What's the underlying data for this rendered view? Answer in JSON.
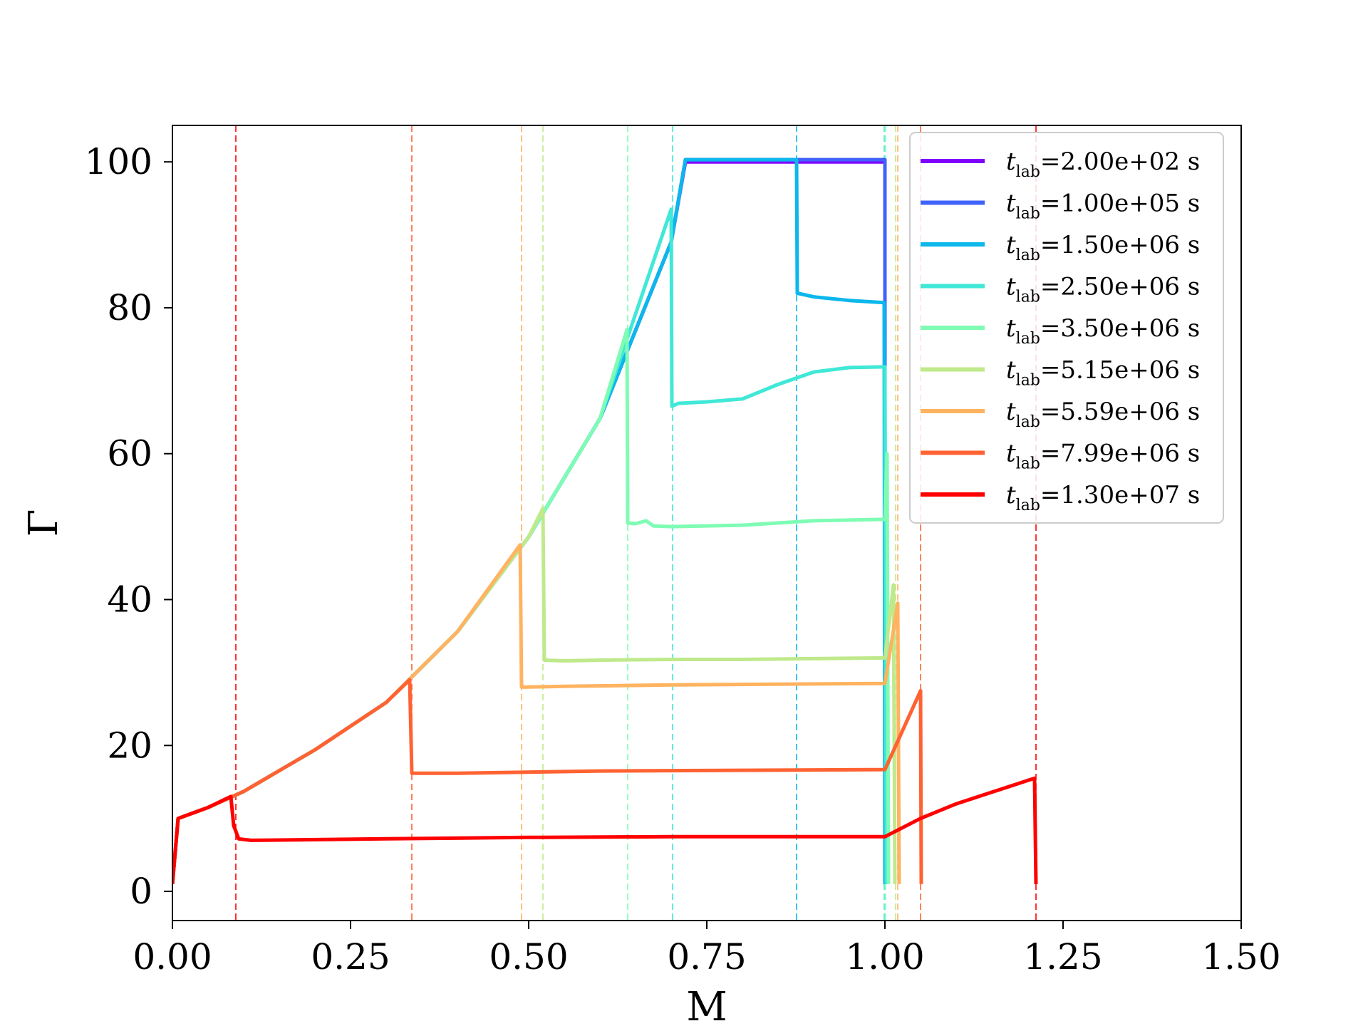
{
  "chart_data": {
    "type": "line",
    "xlabel": "M",
    "ylabel": "Γ",
    "xlim": [
      0,
      1.5
    ],
    "ylim": [
      -4,
      105
    ],
    "xticks": [
      0,
      0.25,
      0.5,
      0.75,
      1.0,
      1.25,
      1.5
    ],
    "xtick_labels": [
      "0.00",
      "0.25",
      "0.50",
      "0.75",
      "1.00",
      "1.25",
      "1.50"
    ],
    "yticks": [
      0,
      20,
      40,
      60,
      80,
      100
    ],
    "ytick_labels": [
      "0",
      "20",
      "40",
      "60",
      "80",
      "100"
    ],
    "grid": false,
    "legend_position": "top-right",
    "series": [
      {
        "name_prefix": "t",
        "name_sub": "lab",
        "name_value": "=2.00e+02 s",
        "color": "#7f00ff",
        "points": [
          [
            0.0,
            1
          ],
          [
            0.008,
            10
          ],
          [
            0.05,
            11.5
          ],
          [
            0.1,
            13.7
          ],
          [
            0.2,
            19.4
          ],
          [
            0.3,
            25.9
          ],
          [
            0.4,
            35.6
          ],
          [
            0.5,
            48.6
          ],
          [
            0.6,
            64.8
          ],
          [
            0.7,
            89
          ],
          [
            0.72,
            100
          ],
          [
            1.0,
            100
          ],
          [
            1.0,
            1
          ]
        ],
        "markers": []
      },
      {
        "name_prefix": "t",
        "name_sub": "lab",
        "name_value": "=1.00e+05 s",
        "color": "#4062fa",
        "points": [
          [
            0.0,
            1
          ],
          [
            0.008,
            10
          ],
          [
            0.05,
            11.5
          ],
          [
            0.1,
            13.7
          ],
          [
            0.2,
            19.4
          ],
          [
            0.3,
            25.9
          ],
          [
            0.4,
            35.6
          ],
          [
            0.5,
            48.6
          ],
          [
            0.6,
            64.8
          ],
          [
            0.7,
            89
          ],
          [
            0.72,
            100.3
          ],
          [
            1.0,
            100.3
          ],
          [
            1.0,
            1
          ]
        ],
        "markers": []
      },
      {
        "name_prefix": "t",
        "name_sub": "lab",
        "name_value": "=1.50e+06 s",
        "color": "#0bb7eb",
        "points": [
          [
            0.0,
            1
          ],
          [
            0.008,
            10
          ],
          [
            0.05,
            11.5
          ],
          [
            0.1,
            13.7
          ],
          [
            0.2,
            19.4
          ],
          [
            0.3,
            25.9
          ],
          [
            0.4,
            35.6
          ],
          [
            0.5,
            48.6
          ],
          [
            0.6,
            64.8
          ],
          [
            0.7,
            89
          ],
          [
            0.72,
            100.3
          ],
          [
            0.876,
            100.3
          ],
          [
            0.877,
            82
          ],
          [
            0.9,
            81.5
          ],
          [
            0.95,
            81
          ],
          [
            0.999,
            80.7
          ],
          [
            1.0,
            1
          ]
        ],
        "markers": [
          0.876
        ]
      },
      {
        "name_prefix": "t",
        "name_sub": "lab",
        "name_value": "=2.50e+06 s",
        "color": "#40e8d7",
        "points": [
          [
            0.0,
            1
          ],
          [
            0.008,
            10
          ],
          [
            0.05,
            11.5
          ],
          [
            0.1,
            13.7
          ],
          [
            0.2,
            19.4
          ],
          [
            0.3,
            25.9
          ],
          [
            0.4,
            35.6
          ],
          [
            0.5,
            48.6
          ],
          [
            0.6,
            64.8
          ],
          [
            0.7,
            93.5
          ],
          [
            0.701,
            66.5
          ],
          [
            0.71,
            66.9
          ],
          [
            0.75,
            67.1
          ],
          [
            0.8,
            67.5
          ],
          [
            0.85,
            69.5
          ],
          [
            0.9,
            71.2
          ],
          [
            0.95,
            71.8
          ],
          [
            1.0,
            71.9
          ],
          [
            1.002,
            1
          ]
        ],
        "markers": [
          0.702,
          0.999
        ]
      },
      {
        "name_prefix": "t",
        "name_sub": "lab",
        "name_value": "=3.50e+06 s",
        "color": "#7ffcb4",
        "points": [
          [
            0.0,
            1
          ],
          [
            0.008,
            10
          ],
          [
            0.05,
            11.5
          ],
          [
            0.1,
            13.7
          ],
          [
            0.2,
            19.4
          ],
          [
            0.3,
            25.9
          ],
          [
            0.4,
            35.6
          ],
          [
            0.5,
            48.6
          ],
          [
            0.6,
            64.8
          ],
          [
            0.638,
            77
          ],
          [
            0.639,
            50.5
          ],
          [
            0.65,
            50.4
          ],
          [
            0.665,
            50.8
          ],
          [
            0.675,
            50.1
          ],
          [
            0.7,
            50
          ],
          [
            0.8,
            50.2
          ],
          [
            0.9,
            50.8
          ],
          [
            1.0,
            51
          ],
          [
            1.003,
            60
          ],
          [
            1.005,
            1
          ]
        ],
        "markers": [
          0.639,
          1.001
        ]
      },
      {
        "name_prefix": "t",
        "name_sub": "lab",
        "name_value": "=5.15e+06 s",
        "color": "#bfe98b",
        "points": [
          [
            0.0,
            1
          ],
          [
            0.008,
            10
          ],
          [
            0.05,
            11.5
          ],
          [
            0.1,
            13.7
          ],
          [
            0.2,
            19.4
          ],
          [
            0.3,
            25.9
          ],
          [
            0.4,
            35.6
          ],
          [
            0.5,
            48.6
          ],
          [
            0.52,
            52.5
          ],
          [
            0.522,
            31.7
          ],
          [
            0.55,
            31.6
          ],
          [
            0.6,
            31.7
          ],
          [
            0.7,
            31.8
          ],
          [
            0.8,
            31.8
          ],
          [
            0.9,
            31.9
          ],
          [
            1.0,
            32
          ],
          [
            1.012,
            42
          ],
          [
            1.014,
            1
          ]
        ],
        "markers": [
          0.52,
          1.015
        ]
      },
      {
        "name_prefix": "t",
        "name_sub": "lab",
        "name_value": "=5.59e+06 s",
        "color": "#ffb360",
        "points": [
          [
            0.0,
            1
          ],
          [
            0.008,
            10
          ],
          [
            0.05,
            11.5
          ],
          [
            0.1,
            13.7
          ],
          [
            0.2,
            19.4
          ],
          [
            0.3,
            25.9
          ],
          [
            0.4,
            35.6
          ],
          [
            0.488,
            47.5
          ],
          [
            0.49,
            28
          ],
          [
            0.55,
            28.1
          ],
          [
            0.7,
            28.3
          ],
          [
            0.85,
            28.4
          ],
          [
            1.0,
            28.5
          ],
          [
            1.018,
            39.5
          ],
          [
            1.02,
            1
          ]
        ],
        "markers": [
          0.49,
          1.018
        ]
      },
      {
        "name_prefix": "t",
        "name_sub": "lab",
        "name_value": "=7.99e+06 s",
        "color": "#ff6232",
        "points": [
          [
            0.0,
            1
          ],
          [
            0.008,
            10
          ],
          [
            0.05,
            11.5
          ],
          [
            0.1,
            13.7
          ],
          [
            0.2,
            19.4
          ],
          [
            0.3,
            25.9
          ],
          [
            0.333,
            29
          ],
          [
            0.336,
            16.2
          ],
          [
            0.4,
            16.2
          ],
          [
            0.6,
            16.5
          ],
          [
            0.8,
            16.6
          ],
          [
            1.0,
            16.7
          ],
          [
            1.05,
            27.5
          ],
          [
            1.051,
            1
          ]
        ],
        "markers": [
          0.336,
          1.05
        ]
      },
      {
        "name_prefix": "t",
        "name_sub": "lab",
        "name_value": "=1.30e+07 s",
        "color": "#ff0000",
        "points": [
          [
            0.0,
            1
          ],
          [
            0.008,
            10
          ],
          [
            0.05,
            11.5
          ],
          [
            0.082,
            13
          ],
          [
            0.086,
            9
          ],
          [
            0.093,
            7.2
          ],
          [
            0.11,
            7
          ],
          [
            0.3,
            7.2
          ],
          [
            0.5,
            7.4
          ],
          [
            0.7,
            7.5
          ],
          [
            0.9,
            7.5
          ],
          [
            1.0,
            7.5
          ],
          [
            1.05,
            10
          ],
          [
            1.1,
            12
          ],
          [
            1.21,
            15.5
          ],
          [
            1.212,
            1
          ]
        ],
        "markers": [
          0.089,
          1.212
        ]
      }
    ]
  }
}
